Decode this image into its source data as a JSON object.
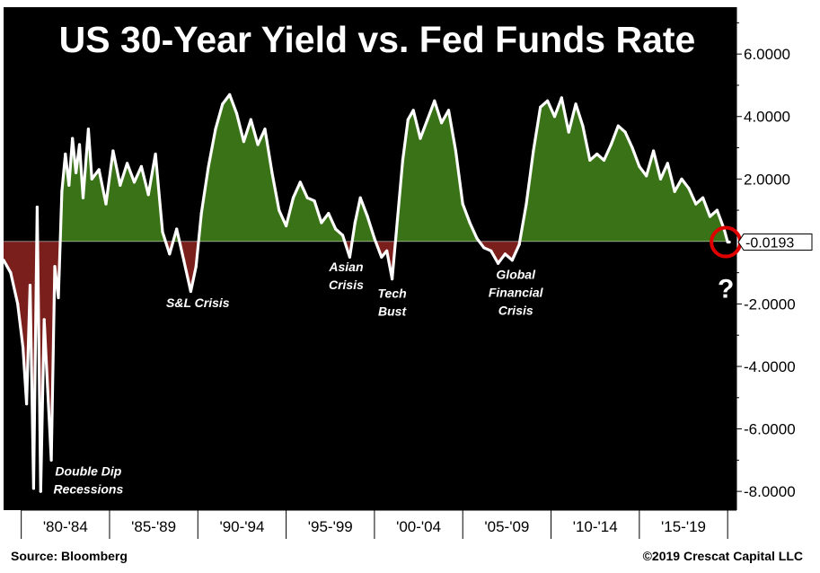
{
  "colors": {
    "background": "#000000",
    "positive_fill": "#3a7317",
    "negative_fill": "#7a1f1c",
    "line": "#ffffff",
    "highlight_circle": "#e00000"
  },
  "footer": {
    "source": "Source: Bloomberg",
    "copyright": "©2019 Crescat Capital LLC"
  },
  "chart_data": {
    "type": "area",
    "title": "US 30-Year Yield vs. Fed Funds Rate",
    "ylim": [
      -8.6,
      7.5
    ],
    "xlim": [
      1978.6,
      2020.1
    ],
    "y_ticks": [
      6,
      4,
      2,
      -2,
      -4,
      -6,
      -8
    ],
    "y_tick_labels": [
      "6.0000",
      "4.0000",
      "2.0000",
      "-2.0000",
      "-4.0000",
      "-6.0000",
      "-8.0000"
    ],
    "x_tick_labels": [
      "'80-'84",
      "'85-'89",
      "'90-'94",
      "'95-'99",
      "'00-'04",
      "'05-'09",
      "'10-'14",
      "'15-'19"
    ],
    "x_tick_dividers": [
      1979.6,
      1984.6,
      1989.6,
      1994.6,
      1999.6,
      2004.6,
      2009.6,
      2014.6,
      2019.6
    ],
    "grid": false,
    "last_value": -0.0193,
    "last_value_label": "-0.0193",
    "question_mark": "?",
    "annotations": [
      {
        "lines": [
          "Double Dip",
          "Recessions"
        ],
        "x": 1983.4,
        "y": -7.5
      },
      {
        "lines": [
          "S&L Crisis"
        ],
        "x": 1989.6,
        "y": -2.1
      },
      {
        "lines": [
          "Asian",
          "Crisis"
        ],
        "x": 1998.0,
        "y": -0.95
      },
      {
        "lines": [
          "Tech",
          "Bust"
        ],
        "x": 2000.6,
        "y": -1.8
      },
      {
        "lines": [
          "Global",
          "Financial",
          "Crisis"
        ],
        "x": 2007.6,
        "y": -1.2
      }
    ],
    "series": [
      {
        "x": [
          1978.6,
          1979.0,
          1979.4,
          1979.7,
          1979.9,
          1980.1,
          1980.3,
          1980.5,
          1980.7,
          1980.9,
          1981.1,
          1981.3,
          1981.5,
          1981.7,
          1981.9,
          1982.1,
          1982.3,
          1982.5,
          1982.7,
          1982.9,
          1983.1,
          1983.4,
          1983.6,
          1984.0,
          1984.4,
          1984.8,
          1985.2,
          1985.6,
          1986.0,
          1986.4,
          1986.8,
          1987.2,
          1987.6,
          1988.0,
          1988.4,
          1988.8,
          1989.2,
          1989.5,
          1989.8,
          1990.2,
          1990.6,
          1991.0,
          1991.4,
          1991.8,
          1992.2,
          1992.6,
          1993.0,
          1993.4,
          1993.8,
          1994.2,
          1994.6,
          1995.0,
          1995.4,
          1995.8,
          1996.2,
          1996.6,
          1997.0,
          1997.4,
          1997.8,
          1998.2,
          1998.5,
          1998.8,
          1999.2,
          1999.6,
          2000.0,
          2000.3,
          2000.6,
          2000.9,
          2001.2,
          2001.5,
          2001.8,
          2002.2,
          2002.6,
          2003.0,
          2003.4,
          2003.8,
          2004.2,
          2004.6,
          2005.0,
          2005.4,
          2005.8,
          2006.2,
          2006.6,
          2007.0,
          2007.4,
          2007.8,
          2008.2,
          2008.6,
          2009.0,
          2009.4,
          2009.8,
          2010.2,
          2010.6,
          2011.0,
          2011.4,
          2011.8,
          2012.2,
          2012.6,
          2013.0,
          2013.4,
          2013.8,
          2014.2,
          2014.6,
          2015.0,
          2015.4,
          2015.8,
          2016.2,
          2016.6,
          2017.0,
          2017.4,
          2017.8,
          2018.2,
          2018.6,
          2019.0,
          2019.4,
          2019.6,
          2019.7
        ],
        "y": [
          -0.6,
          -1.0,
          -2.0,
          -3.4,
          -5.2,
          -1.4,
          -7.9,
          1.1,
          -8.0,
          -2.5,
          -4.8,
          -7.0,
          -0.8,
          -1.8,
          1.6,
          2.8,
          1.8,
          3.3,
          2.2,
          3.1,
          1.4,
          3.6,
          2.0,
          2.3,
          1.2,
          2.9,
          1.8,
          2.5,
          1.9,
          2.4,
          1.5,
          2.8,
          0.3,
          -0.4,
          0.4,
          -0.6,
          -1.6,
          -0.8,
          0.9,
          2.4,
          3.6,
          4.4,
          4.7,
          4.1,
          3.2,
          3.9,
          3.1,
          3.6,
          2.2,
          1.0,
          0.5,
          1.4,
          1.9,
          1.4,
          1.3,
          0.6,
          0.9,
          0.4,
          0.2,
          -0.5,
          0.6,
          1.4,
          0.8,
          0.1,
          -0.5,
          -0.3,
          -1.2,
          0.7,
          2.6,
          3.9,
          4.2,
          3.3,
          3.9,
          4.5,
          3.8,
          4.2,
          2.9,
          1.2,
          0.6,
          0.1,
          -0.2,
          -0.3,
          -0.7,
          -0.4,
          -0.6,
          -0.1,
          1.2,
          2.9,
          4.3,
          4.5,
          4.0,
          4.6,
          3.5,
          4.4,
          3.7,
          2.6,
          2.8,
          2.6,
          3.1,
          3.7,
          3.5,
          3.0,
          2.4,
          2.1,
          2.9,
          2.0,
          2.5,
          1.6,
          2.0,
          1.7,
          1.2,
          1.4,
          0.8,
          1.0,
          0.4,
          -0.0193,
          -0.0193
        ]
      }
    ]
  }
}
